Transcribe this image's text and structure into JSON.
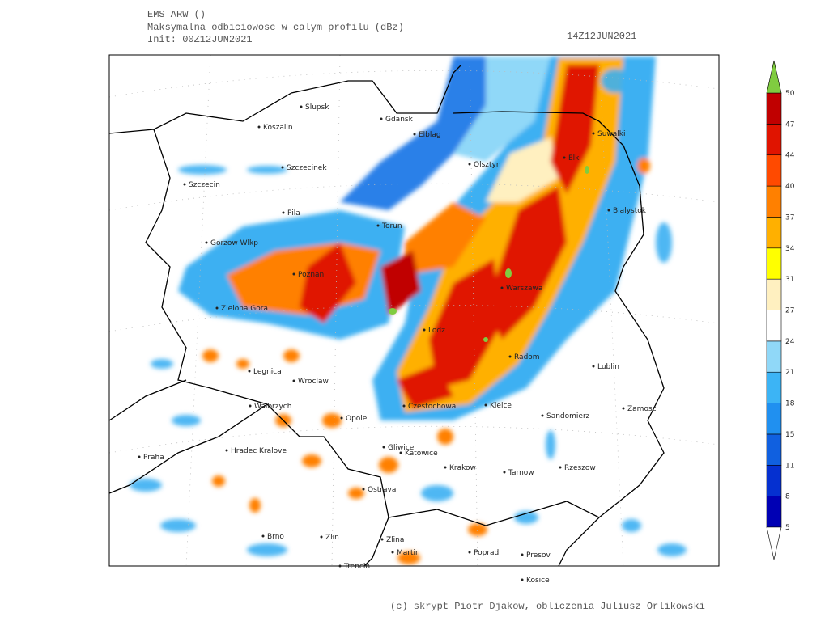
{
  "header": {
    "model": "EMS ARW ()",
    "field": "Maksymalna odbiciowosc w calym profilu (dBz)",
    "init": "Init: 00Z12JUN2021",
    "valid": "14Z12JUN2021"
  },
  "legend": {
    "levels": [
      5,
      8,
      11,
      15,
      18,
      21,
      24,
      27,
      31,
      34,
      37,
      40,
      44,
      47,
      50
    ],
    "colors": [
      "#0000b4",
      "#0530d0",
      "#1060e0",
      "#2090f0",
      "#3cb4f5",
      "#90d8f8",
      "#ffffff",
      "#fff0c0",
      "#ffff00",
      "#ffb000",
      "#ff8000",
      "#ff4a00",
      "#e01400",
      "#c00000"
    ],
    "over_color": "#80cc40",
    "under_color": "#ffffff"
  },
  "cities": [
    "Slupsk",
    "Koszalin",
    "Gdansk",
    "Elblag",
    "Szczecinek",
    "Olsztyn",
    "Elk",
    "Suwalki",
    "Szczecin",
    "Pila",
    "Torun",
    "Bialystok",
    "Gorzow Wlkp",
    "Poznan",
    "Warszawa",
    "Zielona Gora",
    "Lodz",
    "Radom",
    "Lublin",
    "Legnica",
    "Wroclaw",
    "Walbrzych",
    "Czestochowa",
    "Kielce",
    "Sandomierz",
    "Zamosc",
    "Opole",
    "Hradec Kralove",
    "Gliwice",
    "Katowice",
    "Praha",
    "Krakow",
    "Tarnow",
    "Rzeszow",
    "Ostrava",
    "Brno",
    "Zlin",
    "Zlina",
    "Martin",
    "Poprad",
    "Presov",
    "Trencin",
    "Kosice"
  ],
  "credit": "(c) skrypt Piotr Djakow, obliczenia Juliusz Orlikowski"
}
